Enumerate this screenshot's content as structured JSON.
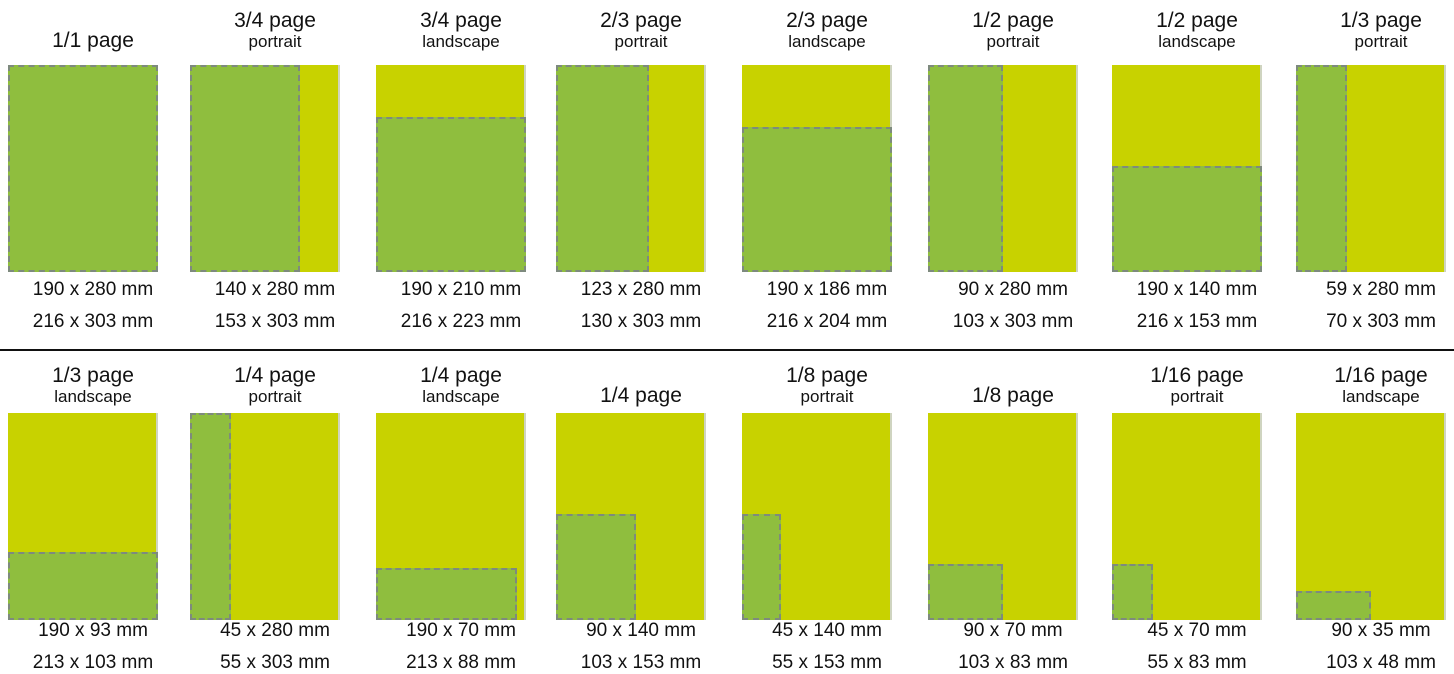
{
  "colors": {
    "page": "#c8d200",
    "ad": "#8fbe3e",
    "ad_outline": "#7e8a7e",
    "divider": "#111111"
  },
  "rows": [
    [
      {
        "title": "1/1 page",
        "subtitle": "",
        "size1": "190 x 280 mm",
        "size2": "216 x 303 mm",
        "ad": {
          "anchor": "full",
          "w": 1,
          "h": 1
        }
      },
      {
        "title": "3/4 page",
        "subtitle": "portrait",
        "size1": "140 x 280 mm",
        "size2": "153 x 303 mm",
        "ad": {
          "anchor": "left",
          "w": 0.73,
          "h": 1
        }
      },
      {
        "title": "3/4 page",
        "subtitle": "landscape",
        "size1": "190 x 210 mm",
        "size2": "216 x 223 mm",
        "ad": {
          "anchor": "bottom",
          "w": 1,
          "h": 0.75
        }
      },
      {
        "title": "2/3 page",
        "subtitle": "portrait",
        "size1": "123 x 280 mm",
        "size2": "130 x 303 mm",
        "ad": {
          "anchor": "left",
          "w": 0.62,
          "h": 1
        }
      },
      {
        "title": "2/3 page",
        "subtitle": "landscape",
        "size1": "190 x 186 mm",
        "size2": "216 x 204 mm",
        "ad": {
          "anchor": "bottom",
          "w": 1,
          "h": 0.7
        }
      },
      {
        "title": "1/2 page",
        "subtitle": "portrait",
        "size1": "90 x 280 mm",
        "size2": "103 x 303 mm",
        "ad": {
          "anchor": "left",
          "w": 0.5,
          "h": 1
        }
      },
      {
        "title": "1/2 page",
        "subtitle": "landscape",
        "size1": "190 x 140 mm",
        "size2": "216 x 153 mm",
        "ad": {
          "anchor": "bottom",
          "w": 1,
          "h": 0.51
        }
      },
      {
        "title": "1/3 page",
        "subtitle": "portrait",
        "size1": "59 x 280 mm",
        "size2": "70 x 303 mm",
        "ad": {
          "anchor": "left",
          "w": 0.34,
          "h": 1
        }
      }
    ],
    [
      {
        "title": "1/3 page",
        "subtitle": "landscape",
        "size1": "190 x 93 mm",
        "size2": "213 x 103 mm",
        "ad": {
          "anchor": "bottom",
          "w": 1,
          "h": 0.33
        }
      },
      {
        "title": "1/4 page",
        "subtitle": "portrait",
        "size1": "45 x 280 mm",
        "size2": "55 x 303 mm",
        "ad": {
          "anchor": "left",
          "w": 0.27,
          "h": 1
        }
      },
      {
        "title": "1/4 page",
        "subtitle": "landscape",
        "size1": "190 x 70 mm",
        "size2": "213 x 88 mm",
        "ad": {
          "anchor": "bottom",
          "w": 0.94,
          "h": 0.25
        }
      },
      {
        "title": "1/4 page",
        "subtitle": "",
        "size1": "90 x 140 mm",
        "size2": "103 x 153 mm",
        "ad": {
          "anchor": "bottom",
          "w": 0.53,
          "h": 0.51
        }
      },
      {
        "title": "1/8 page",
        "subtitle": "portrait",
        "size1": "45 x 140 mm",
        "size2": "55 x 153 mm",
        "ad": {
          "anchor": "bottom",
          "w": 0.26,
          "h": 0.51
        }
      },
      {
        "title": "1/8 page",
        "subtitle": "",
        "size1": "90 x 70 mm",
        "size2": "103 x 83 mm",
        "ad": {
          "anchor": "bottom",
          "w": 0.5,
          "h": 0.27
        }
      },
      {
        "title": "1/16 page",
        "subtitle": "portrait",
        "size1": "45 x 70 mm",
        "size2": "55 x 83 mm",
        "ad": {
          "anchor": "bottom",
          "w": 0.27,
          "h": 0.27
        }
      },
      {
        "title": "1/16 page",
        "subtitle": "landscape",
        "size1": "90 x 35 mm",
        "size2": "103 x 48 mm",
        "ad": {
          "anchor": "bottom",
          "w": 0.5,
          "h": 0.14
        }
      }
    ]
  ]
}
